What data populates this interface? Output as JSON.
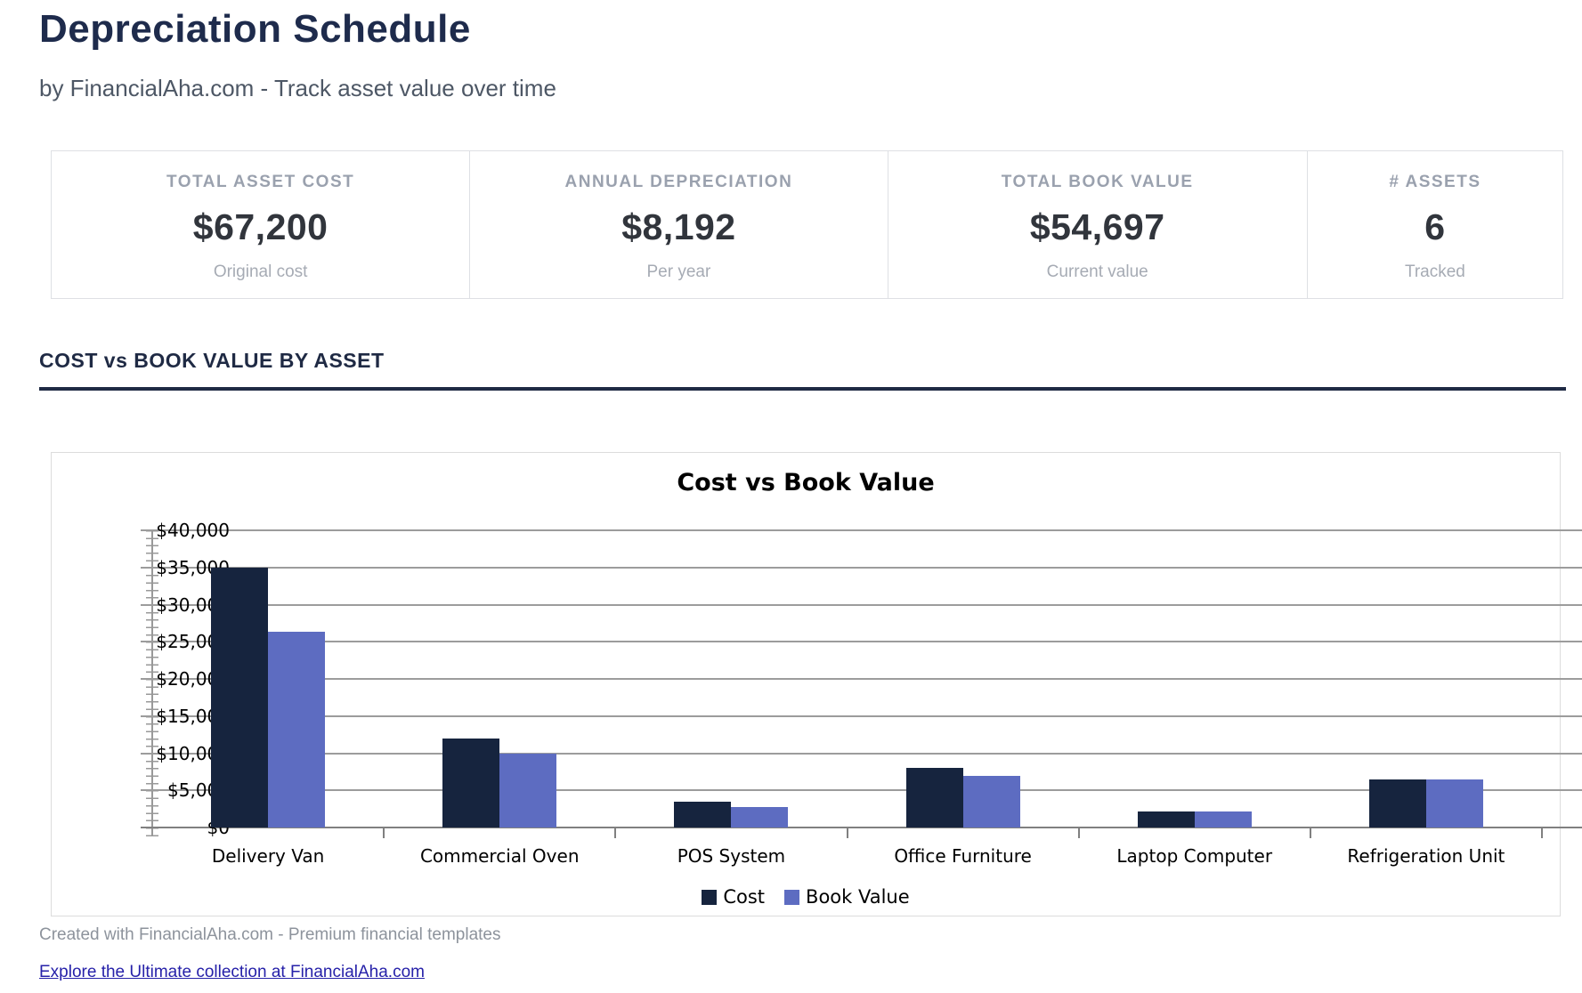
{
  "page": {
    "title": "Depreciation Schedule",
    "subtitle": "by FinancialAha.com - Track asset value over time",
    "footer_note": "Created with FinancialAha.com - Premium financial templates",
    "footer_link": "Explore the Ultimate collection at FinancialAha.com"
  },
  "stats": [
    {
      "label": "TOTAL ASSET COST",
      "value": "$67,200",
      "sublabel": "Original cost"
    },
    {
      "label": "ANNUAL DEPRECIATION",
      "value": "$8,192",
      "sublabel": "Per year"
    },
    {
      "label": "TOTAL BOOK VALUE",
      "value": "$54,697",
      "sublabel": "Current value"
    },
    {
      "label": "# ASSETS",
      "value": "6",
      "sublabel": "Tracked"
    }
  ],
  "section": {
    "heading": "COST vs BOOK VALUE BY ASSET"
  },
  "chart_data": {
    "type": "bar",
    "title": "Cost vs Book Value",
    "categories": [
      "Delivery Van",
      "Commercial Oven",
      "POS System",
      "Office Furniture",
      "Laptop Computer",
      "Refrigeration Unit"
    ],
    "series": [
      {
        "name": "Cost",
        "color": "#16243e",
        "values": [
          35000,
          12000,
          3500,
          8000,
          2200,
          6500
        ]
      },
      {
        "name": "Book Value",
        "color": "#5d6cc1",
        "values": [
          26347,
          9900,
          2750,
          7000,
          2200,
          6500
        ]
      }
    ],
    "ylim": [
      0,
      40000
    ],
    "ytick_step": 5000,
    "ytick_prefix": "$",
    "grid": true,
    "legend_position": "bottom"
  }
}
